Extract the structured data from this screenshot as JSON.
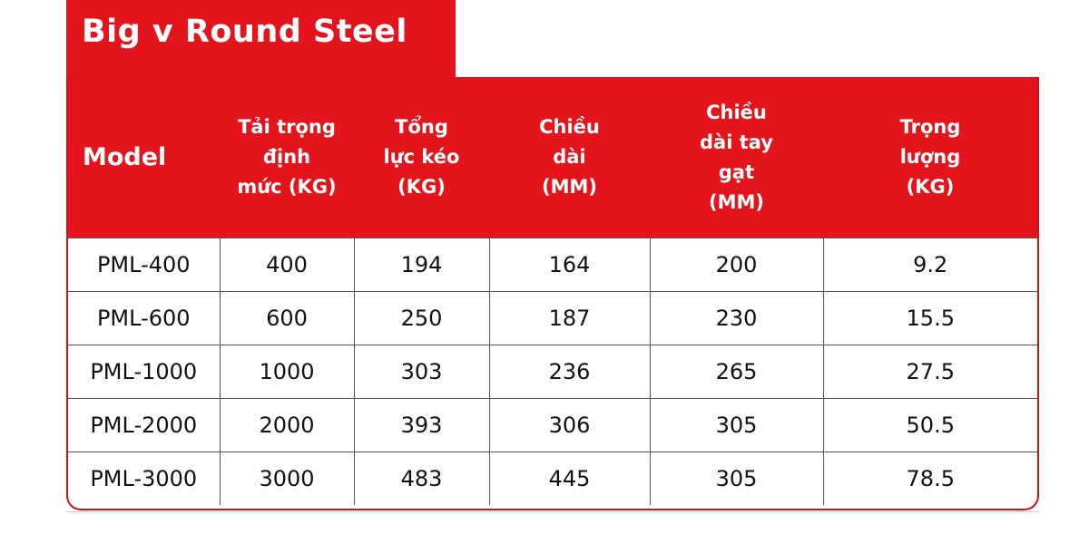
{
  "header": {
    "title": "Big v Round Steel"
  },
  "table": {
    "columns": [
      "Model",
      "Tải trọng\nđịnh\nmức (KG)",
      "Tổng\nlực kéo\n(KG)",
      "Chiều\ndài\n(MM)",
      "Chiều\ndài tay\ngạt\n(MM)",
      "Trọng\nlượng\n(KG)"
    ],
    "rows": [
      [
        "PML-400",
        "400",
        "194",
        "164",
        "200",
        "9.2"
      ],
      [
        "PML-600",
        "600",
        "250",
        "187",
        "230",
        "15.5"
      ],
      [
        "PML-1000",
        "1000",
        "303",
        "236",
        "265",
        "27.5"
      ],
      [
        "PML-2000",
        "2000",
        "393",
        "306",
        "305",
        "50.5"
      ],
      [
        "PML-3000",
        "3000",
        "483",
        "445",
        "305",
        "78.5"
      ]
    ]
  }
}
